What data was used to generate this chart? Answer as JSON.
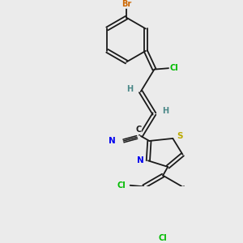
{
  "background_color": "#ebebeb",
  "bond_color": "#1a1a1a",
  "atom_colors": {
    "Br": "#cc6600",
    "Cl": "#00bb00",
    "N": "#0000ee",
    "S": "#bbaa00",
    "C": "#1a1a1a",
    "H": "#4a8888"
  },
  "figsize": [
    3.0,
    3.0
  ],
  "dpi": 100
}
